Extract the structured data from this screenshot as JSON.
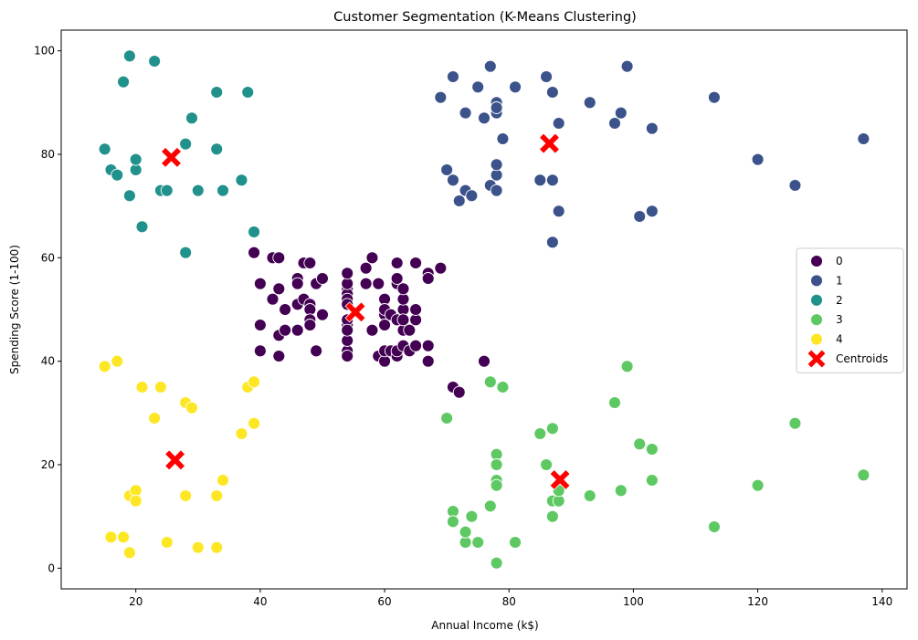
{
  "chart_data": {
    "type": "scatter",
    "title": "Customer Segmentation (K-Means Clustering)",
    "xlabel": "Annual Income (k$)",
    "ylabel": "Spending Score (1-100)",
    "xlim": [
      8,
      144
    ],
    "ylim": [
      -4,
      104
    ],
    "xticks": [
      20,
      40,
      60,
      80,
      100,
      120,
      140
    ],
    "yticks": [
      0,
      20,
      40,
      60,
      80,
      100
    ],
    "grid": false,
    "legend_position": "center-right",
    "series": [
      {
        "name": "0",
        "color": "#440154",
        "points": [
          [
            39,
            61
          ],
          [
            40,
            55
          ],
          [
            40,
            47
          ],
          [
            40,
            42
          ],
          [
            42,
            52
          ],
          [
            42,
            60
          ],
          [
            43,
            60
          ],
          [
            43,
            54
          ],
          [
            43,
            45
          ],
          [
            43,
            41
          ],
          [
            44,
            50
          ],
          [
            44,
            46
          ],
          [
            46,
            51
          ],
          [
            46,
            46
          ],
          [
            46,
            56
          ],
          [
            46,
            55
          ],
          [
            47,
            52
          ],
          [
            47,
            59
          ],
          [
            48,
            51
          ],
          [
            48,
            59
          ],
          [
            48,
            50
          ],
          [
            48,
            48
          ],
          [
            48,
            47
          ],
          [
            49,
            55
          ],
          [
            49,
            42
          ],
          [
            50,
            49
          ],
          [
            50,
            56
          ],
          [
            54,
            47
          ],
          [
            54,
            54
          ],
          [
            54,
            53
          ],
          [
            54,
            48
          ],
          [
            54,
            52
          ],
          [
            54,
            42
          ],
          [
            54,
            51
          ],
          [
            54,
            55
          ],
          [
            54,
            41
          ],
          [
            54,
            44
          ],
          [
            54,
            57
          ],
          [
            54,
            46
          ],
          [
            57,
            58
          ],
          [
            57,
            55
          ],
          [
            58,
            60
          ],
          [
            58,
            46
          ],
          [
            59,
            55
          ],
          [
            59,
            41
          ],
          [
            60,
            49
          ],
          [
            60,
            40
          ],
          [
            60,
            42
          ],
          [
            60,
            52
          ],
          [
            60,
            47
          ],
          [
            60,
            50
          ],
          [
            61,
            42
          ],
          [
            61,
            49
          ],
          [
            62,
            41
          ],
          [
            62,
            48
          ],
          [
            62,
            59
          ],
          [
            62,
            55
          ],
          [
            62,
            56
          ],
          [
            62,
            42
          ],
          [
            63,
            50
          ],
          [
            63,
            46
          ],
          [
            63,
            43
          ],
          [
            63,
            48
          ],
          [
            63,
            52
          ],
          [
            63,
            54
          ],
          [
            64,
            42
          ],
          [
            64,
            46
          ],
          [
            65,
            48
          ],
          [
            65,
            50
          ],
          [
            65,
            43
          ],
          [
            65,
            59
          ],
          [
            67,
            43
          ],
          [
            67,
            57
          ],
          [
            67,
            56
          ],
          [
            67,
            40
          ],
          [
            69,
            58
          ],
          [
            71,
            35
          ],
          [
            72,
            34
          ],
          [
            76,
            40
          ]
        ]
      },
      {
        "name": "1",
        "color": "#3b528b",
        "points": [
          [
            69,
            91
          ],
          [
            70,
            77
          ],
          [
            71,
            95
          ],
          [
            71,
            75
          ],
          [
            72,
            71
          ],
          [
            73,
            88
          ],
          [
            73,
            73
          ],
          [
            74,
            72
          ],
          [
            75,
            93
          ],
          [
            76,
            87
          ],
          [
            77,
            97
          ],
          [
            77,
            74
          ],
          [
            78,
            90
          ],
          [
            78,
            88
          ],
          [
            78,
            89
          ],
          [
            78,
            76
          ],
          [
            78,
            78
          ],
          [
            78,
            73
          ],
          [
            79,
            83
          ],
          [
            81,
            93
          ],
          [
            85,
            75
          ],
          [
            86,
            95
          ],
          [
            87,
            63
          ],
          [
            87,
            75
          ],
          [
            87,
            92
          ],
          [
            88,
            86
          ],
          [
            88,
            69
          ],
          [
            93,
            90
          ],
          [
            97,
            86
          ],
          [
            98,
            88
          ],
          [
            99,
            97
          ],
          [
            101,
            68
          ],
          [
            103,
            85
          ],
          [
            103,
            69
          ],
          [
            113,
            91
          ],
          [
            120,
            79
          ],
          [
            126,
            74
          ],
          [
            137,
            83
          ]
        ]
      },
      {
        "name": "2",
        "color": "#21918c",
        "points": [
          [
            15,
            81
          ],
          [
            16,
            77
          ],
          [
            17,
            76
          ],
          [
            18,
            94
          ],
          [
            19,
            99
          ],
          [
            19,
            72
          ],
          [
            20,
            77
          ],
          [
            20,
            79
          ],
          [
            21,
            66
          ],
          [
            23,
            98
          ],
          [
            24,
            73
          ],
          [
            25,
            73
          ],
          [
            28,
            82
          ],
          [
            28,
            61
          ],
          [
            29,
            87
          ],
          [
            30,
            73
          ],
          [
            33,
            92
          ],
          [
            33,
            81
          ],
          [
            34,
            73
          ],
          [
            37,
            75
          ],
          [
            38,
            92
          ],
          [
            39,
            65
          ]
        ]
      },
      {
        "name": "3",
        "color": "#5ec962",
        "points": [
          [
            70,
            29
          ],
          [
            71,
            11
          ],
          [
            71,
            9
          ],
          [
            73,
            5
          ],
          [
            73,
            7
          ],
          [
            74,
            10
          ],
          [
            75,
            5
          ],
          [
            77,
            12
          ],
          [
            77,
            36
          ],
          [
            78,
            22
          ],
          [
            78,
            17
          ],
          [
            78,
            20
          ],
          [
            78,
            16
          ],
          [
            78,
            1
          ],
          [
            79,
            35
          ],
          [
            81,
            5
          ],
          [
            85,
            26
          ],
          [
            86,
            20
          ],
          [
            87,
            27
          ],
          [
            87,
            13
          ],
          [
            87,
            10
          ],
          [
            88,
            13
          ],
          [
            88,
            15
          ],
          [
            93,
            14
          ],
          [
            97,
            32
          ],
          [
            98,
            15
          ],
          [
            99,
            39
          ],
          [
            101,
            24
          ],
          [
            103,
            17
          ],
          [
            103,
            23
          ],
          [
            113,
            8
          ],
          [
            120,
            16
          ],
          [
            126,
            28
          ],
          [
            137,
            18
          ]
        ]
      },
      {
        "name": "4",
        "color": "#fde725",
        "points": [
          [
            15,
            39
          ],
          [
            16,
            6
          ],
          [
            17,
            40
          ],
          [
            18,
            6
          ],
          [
            19,
            3
          ],
          [
            19,
            14
          ],
          [
            20,
            15
          ],
          [
            20,
            13
          ],
          [
            21,
            35
          ],
          [
            23,
            29
          ],
          [
            24,
            35
          ],
          [
            25,
            5
          ],
          [
            28,
            14
          ],
          [
            28,
            32
          ],
          [
            29,
            31
          ],
          [
            30,
            4
          ],
          [
            33,
            4
          ],
          [
            33,
            14
          ],
          [
            34,
            17
          ],
          [
            37,
            26
          ],
          [
            38,
            35
          ],
          [
            39,
            36
          ],
          [
            39,
            28
          ]
        ]
      }
    ],
    "centroids": {
      "name": "Centroids",
      "color": "#ff0000",
      "points": [
        [
          55.3,
          49.5
        ],
        [
          86.5,
          82.1
        ],
        [
          25.7,
          79.4
        ],
        [
          88.2,
          17.1
        ],
        [
          26.3,
          20.9
        ]
      ]
    }
  }
}
